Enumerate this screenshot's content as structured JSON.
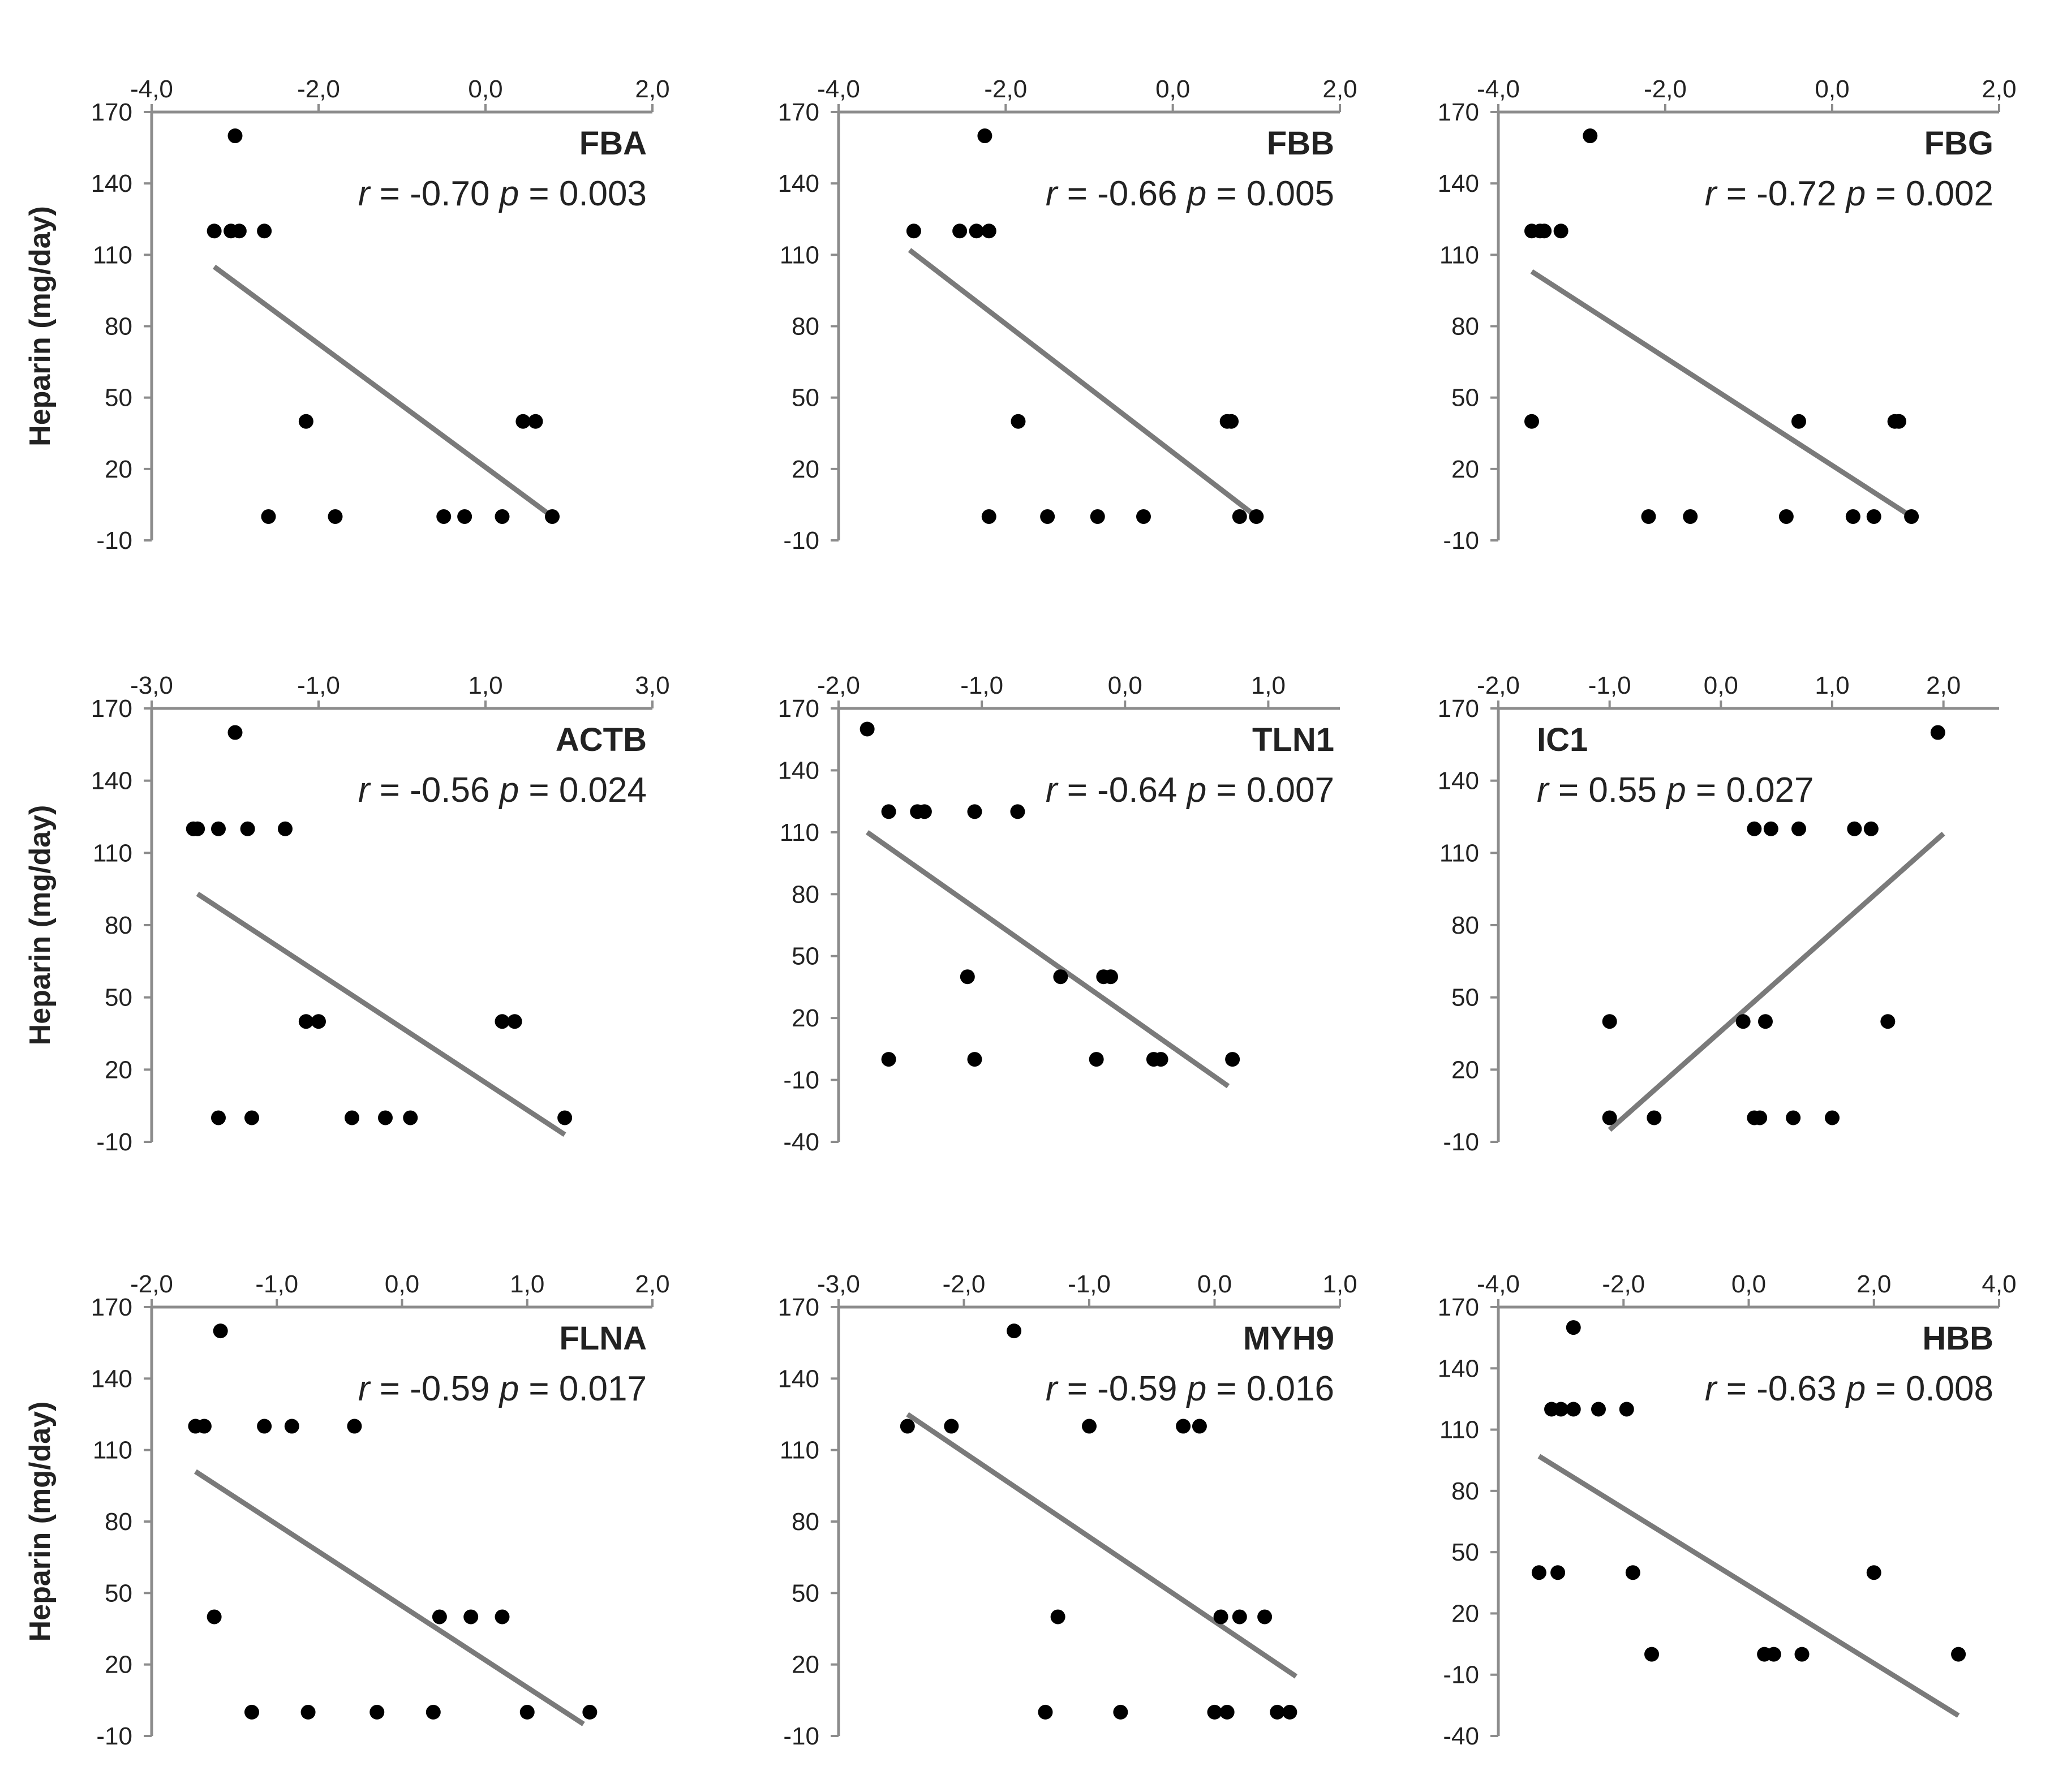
{
  "chart_data": [
    {
      "type": "scatter",
      "title": "FBA",
      "stat_r": "-0.70",
      "stat_p": "0.003",
      "ylabel": "Heparin (mg/day)",
      "xlim": [
        -4.0,
        2.0
      ],
      "ylim": [
        -10,
        170
      ],
      "xticks": [
        -4.0,
        -2.0,
        0.0,
        2.0
      ],
      "xtick_labels": [
        "-4,0",
        "-2,0",
        "0,0",
        "2,0"
      ],
      "yticks": [
        -10,
        20,
        50,
        80,
        110,
        140,
        170
      ],
      "ytick_labels": [
        "-10",
        "20",
        "50",
        "80",
        "110",
        "140",
        "170"
      ],
      "points": [
        [
          -3.0,
          160
        ],
        [
          -3.25,
          120
        ],
        [
          -3.05,
          120
        ],
        [
          -2.95,
          120
        ],
        [
          -2.65,
          120
        ],
        [
          -2.15,
          40
        ],
        [
          -2.6,
          0
        ],
        [
          -1.8,
          0
        ],
        [
          -0.5,
          0
        ],
        [
          -0.25,
          0
        ],
        [
          0.2,
          0
        ],
        [
          0.45,
          40
        ],
        [
          0.6,
          40
        ],
        [
          0.8,
          0
        ]
      ],
      "trendline": [
        [
          -3.25,
          105
        ],
        [
          0.8,
          0
        ]
      ]
    },
    {
      "type": "scatter",
      "title": "FBB",
      "stat_r": "-0.66",
      "stat_p": "0.005",
      "ylabel": "",
      "xlim": [
        -4.0,
        2.0
      ],
      "ylim": [
        -10,
        170
      ],
      "xticks": [
        -4.0,
        -2.0,
        0.0,
        2.0
      ],
      "xtick_labels": [
        "-4,0",
        "-2,0",
        "0,0",
        "2,0"
      ],
      "yticks": [
        -10,
        20,
        50,
        80,
        110,
        140,
        170
      ],
      "ytick_labels": [
        "-10",
        "20",
        "50",
        "80",
        "110",
        "140",
        "170"
      ],
      "points": [
        [
          -2.25,
          160
        ],
        [
          -3.1,
          120
        ],
        [
          -2.55,
          120
        ],
        [
          -2.35,
          120
        ],
        [
          -2.2,
          120
        ],
        [
          -1.85,
          40
        ],
        [
          -2.2,
          0
        ],
        [
          -1.5,
          0
        ],
        [
          -0.9,
          0
        ],
        [
          -0.35,
          0
        ],
        [
          0.65,
          40
        ],
        [
          0.7,
          40
        ],
        [
          0.8,
          0
        ],
        [
          1.0,
          0
        ]
      ],
      "trendline": [
        [
          -3.15,
          112
        ],
        [
          1.0,
          0
        ]
      ]
    },
    {
      "type": "scatter",
      "title": "FBG",
      "stat_r": "-0.72",
      "stat_p": "0.002",
      "ylabel": "",
      "xlim": [
        -4.0,
        2.0
      ],
      "ylim": [
        -10,
        170
      ],
      "xticks": [
        -4.0,
        -2.0,
        0.0,
        2.0
      ],
      "xtick_labels": [
        "-4,0",
        "-2,0",
        "0,0",
        "2,0"
      ],
      "yticks": [
        -10,
        20,
        50,
        80,
        110,
        140,
        170
      ],
      "ytick_labels": [
        "-10",
        "20",
        "50",
        "80",
        "110",
        "140",
        "170"
      ],
      "points": [
        [
          -2.9,
          160
        ],
        [
          -3.6,
          120
        ],
        [
          -3.5,
          120
        ],
        [
          -3.45,
          120
        ],
        [
          -3.25,
          120
        ],
        [
          -3.6,
          40
        ],
        [
          -2.2,
          0
        ],
        [
          -1.7,
          0
        ],
        [
          -0.55,
          0
        ],
        [
          -0.4,
          40
        ],
        [
          0.25,
          0
        ],
        [
          0.5,
          0
        ],
        [
          0.75,
          40
        ],
        [
          0.8,
          40
        ],
        [
          0.95,
          0
        ]
      ],
      "trendline": [
        [
          -3.6,
          103
        ],
        [
          0.95,
          0
        ]
      ]
    },
    {
      "type": "scatter",
      "title": "ACTB",
      "stat_r": "-0.56",
      "stat_p": "0.024",
      "ylabel": "Heparin (mg/day)",
      "xlim": [
        -3.0,
        3.0
      ],
      "ylim": [
        -10,
        170
      ],
      "xticks": [
        -3.0,
        -1.0,
        1.0,
        3.0
      ],
      "xtick_labels": [
        "-3,0",
        "-1,0",
        "1,0",
        "3,0"
      ],
      "yticks": [
        -10,
        20,
        50,
        80,
        110,
        140,
        170
      ],
      "ytick_labels": [
        "-10",
        "20",
        "50",
        "80",
        "110",
        "140",
        "170"
      ],
      "points": [
        [
          -2.0,
          160
        ],
        [
          -2.5,
          120
        ],
        [
          -2.45,
          120
        ],
        [
          -2.2,
          120
        ],
        [
          -1.85,
          120
        ],
        [
          -1.4,
          120
        ],
        [
          -1.15,
          40
        ],
        [
          -1.0,
          40
        ],
        [
          -2.2,
          0
        ],
        [
          -1.8,
          0
        ],
        [
          -0.6,
          0
        ],
        [
          -0.2,
          0
        ],
        [
          0.1,
          0
        ],
        [
          1.2,
          40
        ],
        [
          1.35,
          40
        ],
        [
          1.95,
          0
        ]
      ],
      "trendline": [
        [
          -2.45,
          93
        ],
        [
          1.95,
          -7
        ]
      ]
    },
    {
      "type": "scatter",
      "title": "TLN1",
      "stat_r": "-0.64",
      "stat_p": "0.007",
      "ylabel": "",
      "xlim": [
        -2.0,
        1.5
      ],
      "ylim": [
        -40,
        170
      ],
      "xticks": [
        -2.0,
        -1.0,
        0.0,
        1.0
      ],
      "xtick_labels": [
        "-2,0",
        "-1,0",
        "0,0",
        "1,0"
      ],
      "yticks": [
        -40,
        -10,
        20,
        50,
        80,
        110,
        140,
        170
      ],
      "ytick_labels": [
        "-40",
        "-10",
        "20",
        "50",
        "80",
        "110",
        "140",
        "170"
      ],
      "points": [
        [
          -1.8,
          160
        ],
        [
          -1.65,
          120
        ],
        [
          -1.45,
          120
        ],
        [
          -1.4,
          120
        ],
        [
          -1.05,
          120
        ],
        [
          -0.75,
          120
        ],
        [
          -1.1,
          40
        ],
        [
          -0.45,
          40
        ],
        [
          -0.15,
          40
        ],
        [
          -0.1,
          40
        ],
        [
          -1.65,
          0
        ],
        [
          -1.05,
          0
        ],
        [
          -0.2,
          0
        ],
        [
          0.2,
          0
        ],
        [
          0.25,
          0
        ],
        [
          0.75,
          0
        ]
      ],
      "trendline": [
        [
          -1.8,
          110
        ],
        [
          0.72,
          -13
        ]
      ]
    },
    {
      "type": "scatter",
      "title": "IC1",
      "stat_r": "0.55",
      "stat_p": "0.027",
      "ylabel": "",
      "xlim": [
        -2.0,
        2.5
      ],
      "ylim": [
        -10,
        170
      ],
      "xticks": [
        -2.0,
        -1.0,
        0.0,
        1.0,
        2.0
      ],
      "xtick_labels": [
        "-2,0",
        "-1,0",
        "0,0",
        "1,0",
        "2,0"
      ],
      "yticks": [
        -10,
        20,
        50,
        80,
        110,
        140,
        170
      ],
      "ytick_labels": [
        "-10",
        "20",
        "50",
        "80",
        "110",
        "140",
        "170"
      ],
      "points": [
        [
          1.95,
          160
        ],
        [
          0.3,
          120
        ],
        [
          0.45,
          120
        ],
        [
          0.7,
          120
        ],
        [
          1.2,
          120
        ],
        [
          1.35,
          120
        ],
        [
          -1.0,
          40
        ],
        [
          0.2,
          40
        ],
        [
          0.4,
          40
        ],
        [
          1.5,
          40
        ],
        [
          -1.0,
          0
        ],
        [
          -0.6,
          0
        ],
        [
          0.3,
          0
        ],
        [
          0.35,
          0
        ],
        [
          0.65,
          0
        ],
        [
          1.0,
          0
        ]
      ],
      "trendline": [
        [
          -1.0,
          -5
        ],
        [
          2.0,
          118
        ]
      ]
    },
    {
      "type": "scatter",
      "title": "FLNA",
      "stat_r": "-0.59",
      "stat_p": "0.017",
      "ylabel": "Heparin (mg/day)",
      "xlim": [
        -2.0,
        2.0
      ],
      "ylim": [
        -10,
        170
      ],
      "xticks": [
        -2.0,
        -1.0,
        0.0,
        1.0,
        2.0
      ],
      "xtick_labels": [
        "-2,0",
        "-1,0",
        "0,0",
        "1,0",
        "2,0"
      ],
      "yticks": [
        -10,
        20,
        50,
        80,
        110,
        140,
        170
      ],
      "ytick_labels": [
        "-10",
        "20",
        "50",
        "80",
        "110",
        "140",
        "170"
      ],
      "points": [
        [
          -1.45,
          160
        ],
        [
          -1.65,
          120
        ],
        [
          -1.58,
          120
        ],
        [
          -1.1,
          120
        ],
        [
          -0.88,
          120
        ],
        [
          -0.38,
          120
        ],
        [
          -1.5,
          40
        ],
        [
          0.3,
          40
        ],
        [
          0.55,
          40
        ],
        [
          0.8,
          40
        ],
        [
          -1.2,
          0
        ],
        [
          -0.75,
          0
        ],
        [
          -0.2,
          0
        ],
        [
          0.25,
          0
        ],
        [
          1.0,
          0
        ],
        [
          1.5,
          0
        ]
      ],
      "trendline": [
        [
          -1.65,
          101
        ],
        [
          1.45,
          -5
        ]
      ]
    },
    {
      "type": "scatter",
      "title": "MYH9",
      "stat_r": "-0.59",
      "stat_p": "0.016",
      "ylabel": "",
      "xlim": [
        -3.0,
        1.0
      ],
      "ylim": [
        -10,
        170
      ],
      "xticks": [
        -3.0,
        -2.0,
        -1.0,
        0.0,
        1.0
      ],
      "xtick_labels": [
        "-3,0",
        "-2,0",
        "-1,0",
        "0,0",
        "1,0"
      ],
      "yticks": [
        -10,
        20,
        50,
        80,
        110,
        140,
        170
      ],
      "ytick_labels": [
        "-10",
        "20",
        "50",
        "80",
        "110",
        "140",
        "170"
      ],
      "points": [
        [
          -1.6,
          160
        ],
        [
          -2.45,
          120
        ],
        [
          -2.1,
          120
        ],
        [
          -1.0,
          120
        ],
        [
          -0.25,
          120
        ],
        [
          -0.12,
          120
        ],
        [
          -1.25,
          40
        ],
        [
          0.05,
          40
        ],
        [
          0.2,
          40
        ],
        [
          0.4,
          40
        ],
        [
          -1.35,
          0
        ],
        [
          -0.75,
          0
        ],
        [
          0.0,
          0
        ],
        [
          0.1,
          0
        ],
        [
          0.5,
          0
        ],
        [
          0.6,
          0
        ]
      ],
      "trendline": [
        [
          -2.45,
          125
        ],
        [
          0.65,
          15
        ]
      ]
    },
    {
      "type": "scatter",
      "title": "HBB",
      "stat_r": "-0.63",
      "stat_p": "0.008",
      "ylabel": "",
      "xlim": [
        -4.0,
        4.0
      ],
      "ylim": [
        -40,
        170
      ],
      "xticks": [
        -4.0,
        -2.0,
        0.0,
        2.0,
        4.0
      ],
      "xtick_labels": [
        "-4,0",
        "-2,0",
        "0,0",
        "2,0",
        "4,0"
      ],
      "yticks": [
        -40,
        -10,
        20,
        50,
        80,
        110,
        140,
        170
      ],
      "ytick_labels": [
        "-40",
        "-10",
        "20",
        "50",
        "80",
        "110",
        "140",
        "170"
      ],
      "points": [
        [
          -2.8,
          160
        ],
        [
          -3.15,
          120
        ],
        [
          -3.0,
          120
        ],
        [
          -2.8,
          120
        ],
        [
          -2.4,
          120
        ],
        [
          -1.95,
          120
        ],
        [
          -3.35,
          40
        ],
        [
          -3.05,
          40
        ],
        [
          -1.85,
          40
        ],
        [
          2.0,
          40
        ],
        [
          -1.55,
          0
        ],
        [
          0.25,
          0
        ],
        [
          0.4,
          0
        ],
        [
          0.85,
          0
        ],
        [
          3.35,
          0
        ]
      ],
      "trendline": [
        [
          -3.35,
          97
        ],
        [
          3.35,
          -30
        ]
      ]
    }
  ]
}
